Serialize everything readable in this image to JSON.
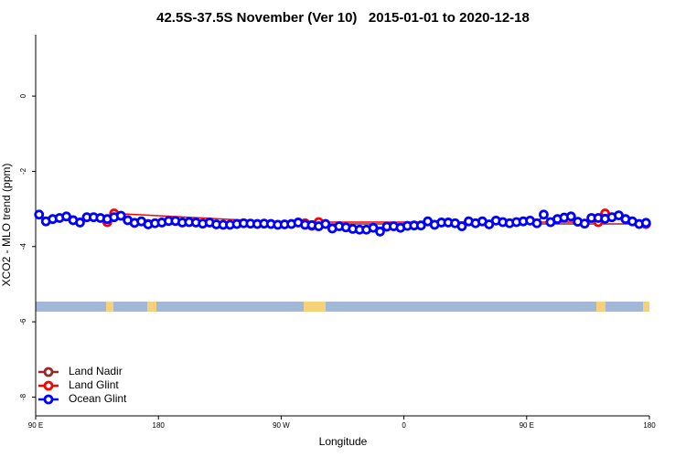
{
  "chart_data": {
    "type": "line",
    "title": "42.5S-37.5S November (Ver 10)   2015-01-01 to 2020-12-18",
    "x_label": "Longitude",
    "y_label": "XCO2 - MLO trend (ppm)",
    "xlim": [
      90,
      540
    ],
    "ylim": [
      -8.5,
      1.63
    ],
    "xticks": [
      {
        "value": 90,
        "label": "90 E"
      },
      180,
      {
        "value": 270,
        "label": "90 W"
      },
      {
        "value": 360,
        "label": "0"
      },
      {
        "value": 450,
        "label": "90 E"
      },
      {
        "value": 540,
        "label": "180"
      }
    ],
    "yticks": [
      -8,
      -6,
      -4,
      -2,
      0
    ],
    "legend": "bottom-left",
    "series": [
      {
        "name": "Land Nadir",
        "color": "#962a2a",
        "x": [
          172.5,
          537.5
        ],
        "values": [
          -3.4,
          -3.4
        ]
      },
      {
        "name": "Land Glint",
        "color": "#ff0000",
        "x": [
          142.5,
          147.5,
          287.5,
          292.5,
          297.5,
          502.5,
          507.5,
          537.5
        ],
        "values": [
          -3.35,
          -3.12,
          -3.38,
          -3.45,
          -3.35,
          -3.35,
          -3.12,
          -3.4
        ]
      },
      {
        "name": "Ocean Glint",
        "color": "#0000ff",
        "x": [
          92.5,
          97.5,
          102.5,
          107.5,
          112.5,
          117.5,
          122.5,
          127.5,
          132.5,
          137.5,
          142.5,
          147.5,
          152.5,
          157.5,
          162.5,
          167.5,
          172.5,
          177.5,
          182.5,
          187.5,
          192.5,
          197.5,
          202.5,
          207.5,
          212.5,
          217.5,
          222.5,
          227.5,
          232.5,
          237.5,
          242.5,
          247.5,
          252.5,
          257.5,
          262.5,
          267.5,
          272.5,
          277.5,
          282.5,
          287.5,
          292.5,
          297.5,
          302.5,
          307.5,
          312.5,
          317.5,
          322.5,
          327.5,
          332.5,
          337.5,
          342.5,
          347.5,
          352.5,
          357.5,
          362.5,
          367.5,
          372.5,
          377.5,
          382.5,
          387.5,
          392.5,
          397.5,
          402.5,
          407.5,
          412.5,
          417.5,
          422.5,
          427.5,
          432.5,
          437.5,
          442.5,
          447.5,
          452.5,
          457.5,
          462.5,
          467.5,
          472.5,
          477.5,
          482.5,
          487.5,
          492.5,
          497.5,
          502.5,
          507.5,
          512.5,
          517.5,
          522.5,
          527.5,
          532.5,
          537.5
        ],
        "values": [
          -3.15,
          -3.33,
          -3.27,
          -3.24,
          -3.2,
          -3.3,
          -3.36,
          -3.22,
          -3.22,
          -3.24,
          -3.27,
          -3.22,
          -3.18,
          -3.3,
          -3.37,
          -3.33,
          -3.41,
          -3.38,
          -3.36,
          -3.32,
          -3.32,
          -3.36,
          -3.35,
          -3.36,
          -3.39,
          -3.36,
          -3.41,
          -3.42,
          -3.42,
          -3.4,
          -3.38,
          -3.39,
          -3.4,
          -3.39,
          -3.4,
          -3.42,
          -3.41,
          -3.4,
          -3.36,
          -3.42,
          -3.43,
          -3.46,
          -3.4,
          -3.52,
          -3.46,
          -3.49,
          -3.53,
          -3.55,
          -3.55,
          -3.5,
          -3.6,
          -3.47,
          -3.46,
          -3.5,
          -3.45,
          -3.44,
          -3.44,
          -3.33,
          -3.42,
          -3.36,
          -3.36,
          -3.38,
          -3.46,
          -3.33,
          -3.38,
          -3.33,
          -3.41,
          -3.31,
          -3.35,
          -3.38,
          -3.35,
          -3.33,
          -3.31,
          -3.38,
          -3.15,
          -3.35,
          -3.27,
          -3.23,
          -3.2,
          -3.34,
          -3.39,
          -3.24,
          -3.24,
          -3.26,
          -3.22,
          -3.17,
          -3.27,
          -3.33,
          -3.4,
          -3.37
        ]
      }
    ]
  }
}
